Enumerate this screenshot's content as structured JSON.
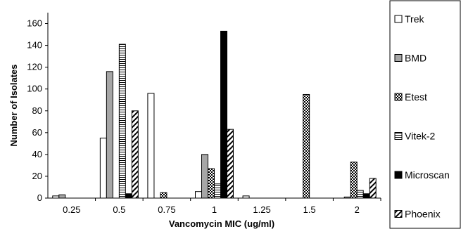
{
  "chart_data": {
    "type": "bar",
    "xlabel": "Vancomycin MIC (ug/ml)",
    "ylabel": "Number of Isolates",
    "categories": [
      "0.25",
      "0.5",
      "0.75",
      "1",
      "1.25",
      "1.5",
      "2"
    ],
    "ylim": [
      0,
      170
    ],
    "yticks": [
      0,
      20,
      40,
      60,
      80,
      100,
      120,
      140,
      160
    ],
    "grid": false,
    "legend_position": "right",
    "series": [
      {
        "name": "Trek",
        "pattern": "white",
        "values": [
          2,
          55,
          96,
          6,
          2,
          0,
          0
        ]
      },
      {
        "name": "BMD",
        "pattern": "gray",
        "values": [
          3,
          116,
          0,
          40,
          0,
          0,
          1
        ]
      },
      {
        "name": "Etest",
        "pattern": "checker",
        "values": [
          0,
          0,
          5,
          27,
          0,
          95,
          33
        ]
      },
      {
        "name": "Vitek-2",
        "pattern": "horizontal",
        "values": [
          0,
          141,
          0,
          13,
          0,
          0,
          7
        ]
      },
      {
        "name": "Microscan",
        "pattern": "black",
        "values": [
          0,
          4,
          0,
          153,
          0,
          0,
          4
        ]
      },
      {
        "name": "Phoenix",
        "pattern": "diagonal",
        "values": [
          0,
          80,
          0,
          63,
          0,
          0,
          18
        ]
      }
    ],
    "colors": {
      "gray": "#a6a6a6",
      "black": "#000000",
      "white": "#ffffff"
    }
  }
}
